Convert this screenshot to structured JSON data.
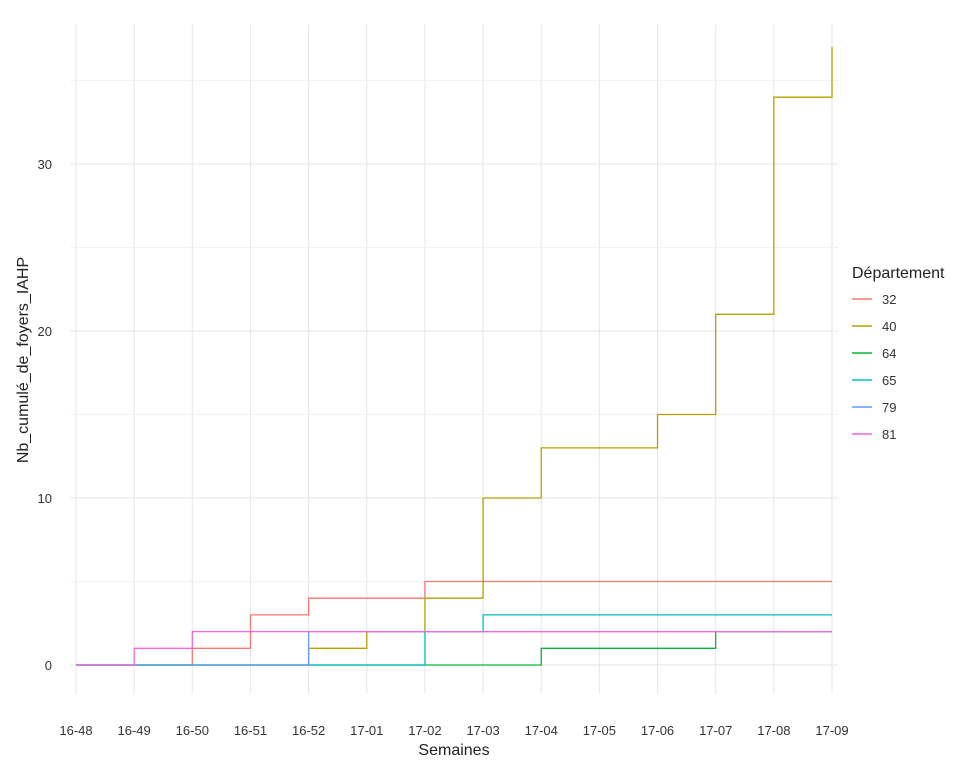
{
  "chart_data": {
    "type": "line",
    "step": true,
    "xlabel": "Semaines",
    "ylabel": "Nb_cumulé_de_foyers_IAHP",
    "categories": [
      "16-48",
      "16-49",
      "16-50",
      "16-51",
      "16-52",
      "17-01",
      "17-02",
      "17-03",
      "17-04",
      "17-05",
      "17-06",
      "17-07",
      "17-08",
      "17-09"
    ],
    "ylim": [
      -1,
      38
    ],
    "yticks": [
      0,
      10,
      20,
      30
    ],
    "y_tick_labels": [
      "0",
      "10",
      "20",
      "30"
    ],
    "grid": true,
    "legend": {
      "title": "Département",
      "position": "right"
    },
    "series": [
      {
        "name": "32",
        "color": "#F8766D",
        "values": [
          0,
          0,
          1,
          3,
          4,
          4,
          5,
          5,
          5,
          5,
          5,
          5,
          5,
          5
        ]
      },
      {
        "name": "40",
        "color": "#B79F00",
        "values": [
          0,
          0,
          0,
          0,
          1,
          2,
          4,
          10,
          13,
          13,
          15,
          21,
          34,
          37
        ]
      },
      {
        "name": "64",
        "color": "#00BA38",
        "values": [
          0,
          0,
          0,
          0,
          0,
          0,
          0,
          0,
          1,
          1,
          1,
          2,
          2,
          2
        ]
      },
      {
        "name": "65",
        "color": "#00BFC4",
        "values": [
          0,
          0,
          0,
          0,
          0,
          0,
          2,
          3,
          3,
          3,
          3,
          3,
          3,
          3
        ]
      },
      {
        "name": "79",
        "color": "#619CFF",
        "values": [
          0,
          0,
          0,
          0,
          2,
          2,
          2,
          2,
          2,
          2,
          2,
          2,
          2,
          2
        ]
      },
      {
        "name": "81",
        "color": "#F564E3",
        "values": [
          0,
          1,
          2,
          2,
          2,
          2,
          2,
          2,
          2,
          2,
          2,
          2,
          2,
          2
        ]
      }
    ]
  }
}
